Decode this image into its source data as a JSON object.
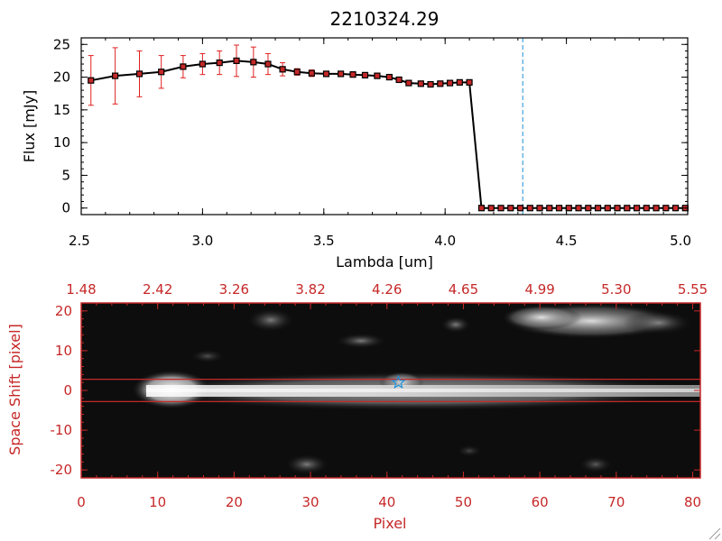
{
  "chart_data": [
    {
      "type": "line",
      "title": "2210324.29",
      "xlabel": "Lambda [um]",
      "ylabel": "Flux [mJy]",
      "xlim": [
        2.5,
        5.0
      ],
      "ylim": [
        -1,
        26
      ],
      "xticks": [
        "2.5",
        "3.0",
        "3.5",
        "4.0",
        "4.5",
        "5.0"
      ],
      "yticks": [
        "0",
        "5",
        "10",
        "15",
        "20",
        "25"
      ],
      "grid": false,
      "marker_line": {
        "x": 4.32,
        "style": "dashed",
        "color": "#1f8fd6"
      },
      "series": [
        {
          "x": [
            2.54,
            2.64,
            2.74,
            2.83,
            2.92,
            3.0,
            3.07,
            3.14,
            3.21,
            3.27,
            3.33,
            3.39,
            3.45,
            3.51,
            3.57,
            3.62,
            3.67,
            3.72,
            3.77,
            3.81,
            3.85,
            3.9,
            3.94,
            3.98,
            4.02,
            4.06,
            4.1,
            4.15,
            4.19,
            4.23,
            4.27,
            4.31,
            4.35,
            4.39,
            4.43,
            4.47,
            4.51,
            4.55,
            4.59,
            4.63,
            4.67,
            4.71,
            4.75,
            4.79,
            4.83,
            4.87,
            4.91,
            4.95,
            4.99
          ],
          "y": [
            19.5,
            20.2,
            20.5,
            20.8,
            21.6,
            22.0,
            22.2,
            22.5,
            22.3,
            22.0,
            21.2,
            20.8,
            20.6,
            20.5,
            20.5,
            20.4,
            20.3,
            20.2,
            20.0,
            19.6,
            19.1,
            19.0,
            18.9,
            19.0,
            19.1,
            19.2,
            19.2,
            0,
            0,
            0,
            0,
            0,
            0,
            0,
            0,
            0,
            0,
            0,
            0,
            0,
            0,
            0,
            0,
            0,
            0,
            0,
            0,
            0,
            0
          ],
          "yerr": [
            3.8,
            4.3,
            3.5,
            2.5,
            1.7,
            1.6,
            1.8,
            2.4,
            2.3,
            1.6,
            1.0,
            0.5,
            0.5,
            0.4,
            0.4,
            0.4,
            0.4,
            0.4,
            0.4,
            0.4,
            0.4,
            0.4,
            0.4,
            0.4,
            0.4,
            0.4,
            0.4,
            0,
            0,
            0,
            0,
            0,
            0,
            0,
            0,
            0,
            0,
            0,
            0,
            0,
            0,
            0,
            0,
            0,
            0,
            0,
            0,
            0,
            0
          ],
          "line_color": "#000000",
          "marker_color": "#c62828",
          "errorbar_color": "#e02020"
        }
      ]
    },
    {
      "type": "heatmap",
      "xlabel": "Pixel",
      "ylabel": "Space Shift [pixel]",
      "xlim": [
        0,
        81
      ],
      "ylim": [
        -22,
        22
      ],
      "xticks": [
        "0",
        "10",
        "20",
        "30",
        "40",
        "50",
        "60",
        "70",
        "80"
      ],
      "yticks": [
        "-20",
        "-10",
        "0",
        "10",
        "20"
      ],
      "top_axis_ticks": [
        "1.48",
        "2.42",
        "3.26",
        "3.82",
        "4.26",
        "4.65",
        "4.99",
        "5.30",
        "5.55"
      ],
      "hlines": [
        2.8,
        -2.8
      ],
      "hline_color": "#c62828",
      "source_marker": {
        "x": 41.5,
        "y": 2.0,
        "symbol": "star",
        "color": "#1f8fd6"
      },
      "colormap": "grayscale",
      "axis_color": "#c62828"
    }
  ]
}
